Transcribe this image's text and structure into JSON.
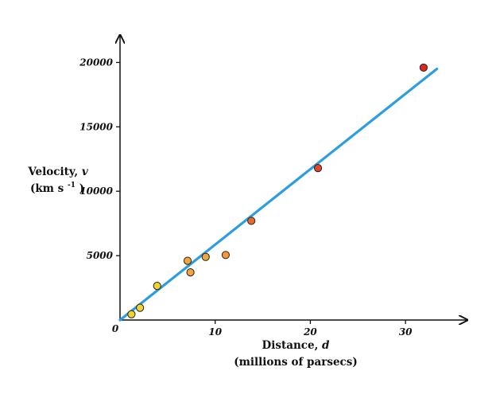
{
  "chart_data": {
    "type": "scatter",
    "x_axis_title": "Distance,",
    "x_axis_var": "d",
    "x_axis_unit": "(millions of parsecs)",
    "y_axis_title": "Velocity,",
    "y_axis_var": "v",
    "y_axis_unit_prefix": "(km s",
    "y_axis_unit_exp": "-1",
    "y_axis_unit_suffix": " )",
    "origin_label": "0",
    "xlim": [
      0,
      36
    ],
    "ylim": [
      0,
      22500
    ],
    "x_ticks": [
      10,
      20,
      30
    ],
    "y_ticks": [
      5000,
      10000,
      15000,
      20000
    ],
    "grid": false,
    "fit_line": {
      "x": [
        0,
        33.3
      ],
      "y": [
        0,
        19500
      ],
      "color": "#2b9de0"
    },
    "points": [
      {
        "x": 1.2,
        "y": 450,
        "color": "#f2d22e"
      },
      {
        "x": 2.1,
        "y": 950,
        "color": "#f2d22e"
      },
      {
        "x": 3.9,
        "y": 2650,
        "color": "#f2d22e"
      },
      {
        "x": 7.1,
        "y": 4600,
        "color": "#f3a53a"
      },
      {
        "x": 7.4,
        "y": 3700,
        "color": "#f3a53a"
      },
      {
        "x": 9.0,
        "y": 4900,
        "color": "#f3a53a"
      },
      {
        "x": 11.1,
        "y": 5050,
        "color": "#f39a35"
      },
      {
        "x": 13.8,
        "y": 7700,
        "color": "#e8682e"
      },
      {
        "x": 20.8,
        "y": 11800,
        "color": "#e2452b"
      },
      {
        "x": 31.9,
        "y": 19600,
        "color": "#e0261f"
      }
    ]
  }
}
